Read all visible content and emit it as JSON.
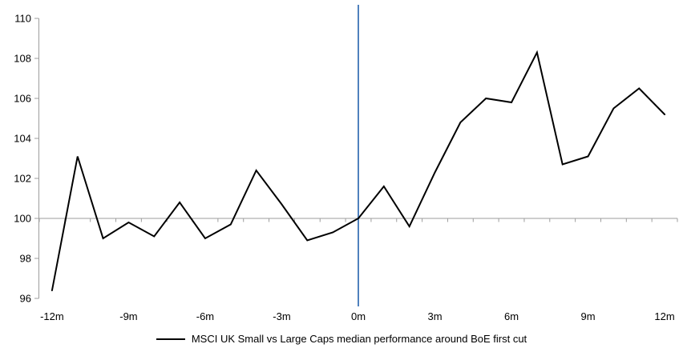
{
  "chart_data": {
    "type": "line",
    "x": [
      -12,
      -11,
      -10,
      -9,
      -8,
      -7,
      -6,
      -5,
      -4,
      -3,
      -2,
      -1,
      0,
      1,
      2,
      3,
      4,
      5,
      6,
      7,
      8,
      9,
      10,
      11,
      12
    ],
    "series": [
      {
        "name": "MSCI UK Small vs Large Caps median performance around BoE first cut",
        "values": [
          96.4,
          103.1,
          99.0,
          99.8,
          99.1,
          100.8,
          99.0,
          99.7,
          102.4,
          100.7,
          98.9,
          99.3,
          100.0,
          101.6,
          99.6,
          102.3,
          104.8,
          106.0,
          105.8,
          108.3,
          102.7,
          103.1,
          105.5,
          106.5,
          105.2
        ]
      }
    ],
    "x_tick_months": [
      -12,
      -9,
      -6,
      -3,
      0,
      3,
      6,
      9,
      12
    ],
    "x_tick_labels": [
      "-12m",
      "-9m",
      "-6m",
      "-3m",
      "0m",
      "3m",
      "6m",
      "9m",
      "12m"
    ],
    "y_ticks": [
      96,
      98,
      100,
      102,
      104,
      106,
      108,
      110
    ],
    "y_tick_labels": [
      "96",
      "98",
      "100",
      "102",
      "104",
      "106",
      "108",
      "110"
    ],
    "ylim": [
      96,
      110
    ],
    "baseline": 100,
    "event_line_x": 0,
    "legend_position": "bottom",
    "grid": "off",
    "colors": {
      "series": "#000000",
      "event_line": "#4f81bd",
      "axis": "#9d9d9d",
      "baseline_axis": "#b0b0b0",
      "text": "#000000"
    }
  }
}
